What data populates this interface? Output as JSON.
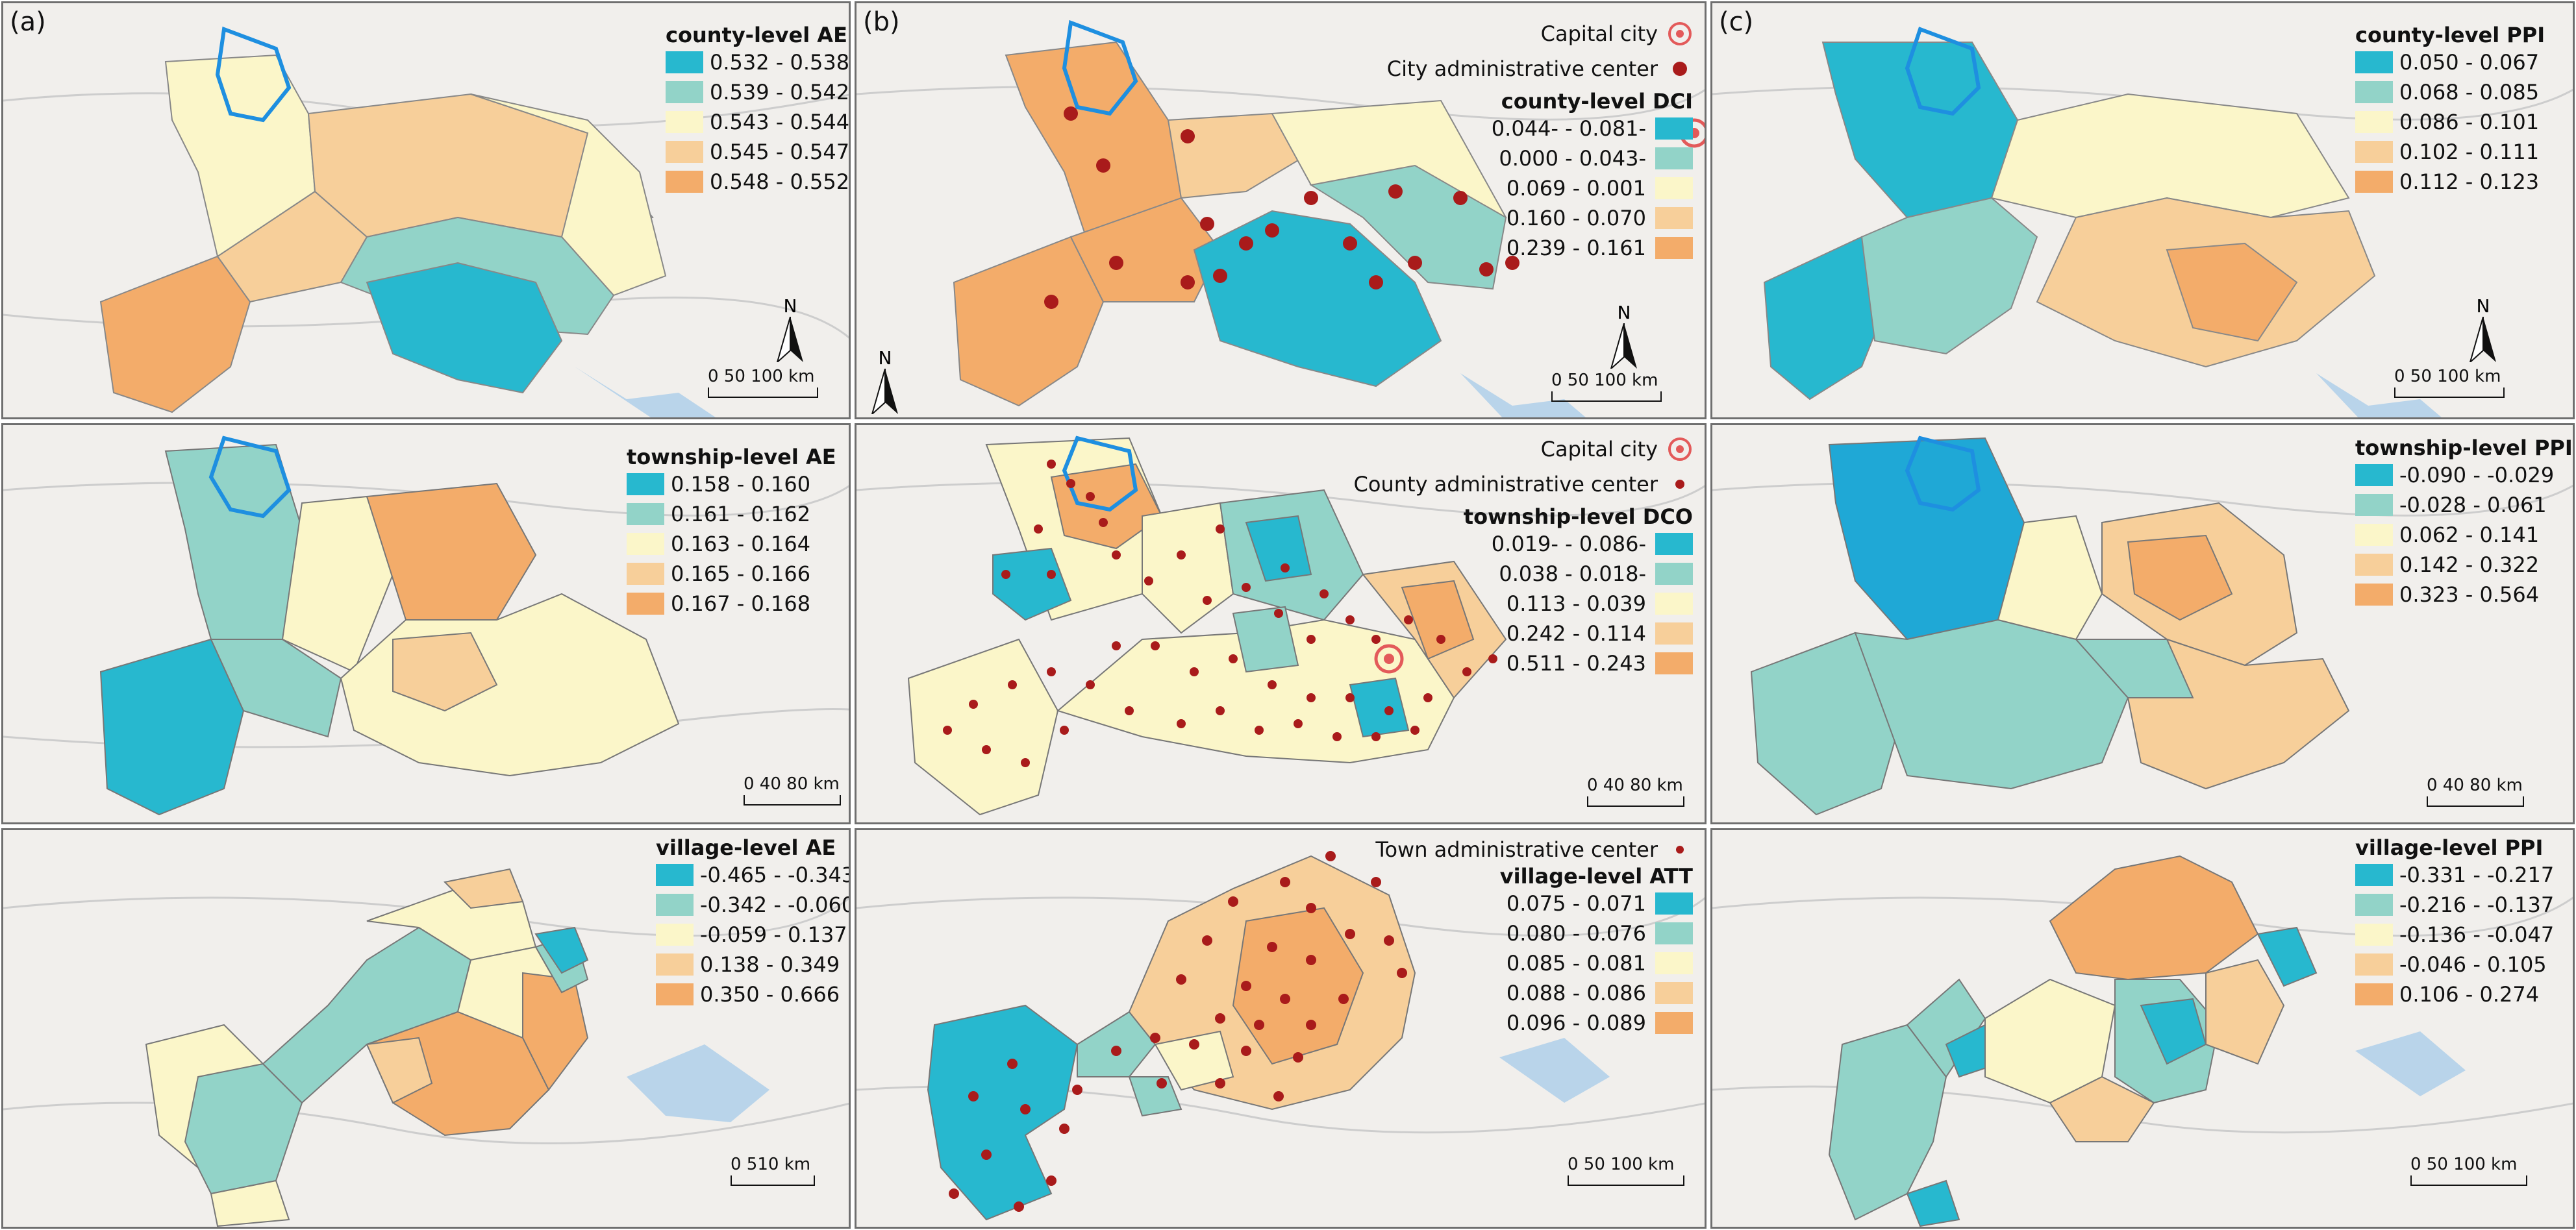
{
  "colors": {
    "c1": "#27b8cf",
    "c2": "#92d3c8",
    "c3": "#fbf6c9",
    "c4": "#f7cf9a",
    "c5": "#f3ac6a",
    "bg": "#f1efec",
    "water": "#b9d4ea",
    "road": "#cdcdcd",
    "dot": "#a91b1b",
    "highlight": "#1e8fe0"
  },
  "panel_labels": {
    "a": "(a)",
    "b": "(b)",
    "c": "(c)"
  },
  "north_label": "N",
  "symbols": {
    "capital_city": "Capital city",
    "city_center": "City administrative center",
    "county_center": "County administrative center",
    "town_center": "Town administrative center"
  },
  "legends": {
    "a1": {
      "title": "county-level AE",
      "items": [
        "0.532 - 0.538",
        "0.539 - 0.542",
        "0.543 - 0.544",
        "0.545 - 0.547",
        "0.548 - 0.552"
      ]
    },
    "b1": {
      "title": "county-level DCI",
      "items": [
        "0.044- - 0.081-",
        "0.000 - 0.043-",
        "0.069 - 0.001",
        "0.160 - 0.070",
        "0.239 - 0.161"
      ]
    },
    "c1": {
      "title": "county-level PPI",
      "items": [
        "0.050 - 0.067",
        "0.068 - 0.085",
        "0.086 - 0.101",
        "0.102 - 0.111",
        "0.112 - 0.123"
      ]
    },
    "a2": {
      "title": "township-level AE",
      "items": [
        "0.158 - 0.160",
        "0.161 - 0.162",
        "0.163 - 0.164",
        "0.165 - 0.166",
        "0.167 - 0.168"
      ]
    },
    "b2": {
      "title": "township-level DCO",
      "items": [
        "0.019- - 0.086-",
        "0.038 - 0.018-",
        "0.113 - 0.039",
        "0.242 - 0.114",
        "0.511 - 0.243"
      ]
    },
    "c2": {
      "title": "township-level PPI",
      "items": [
        "-0.090 - -0.029",
        "-0.028 - 0.061",
        "0.062 - 0.141",
        "0.142 - 0.322",
        "0.323 - 0.564"
      ]
    },
    "a3": {
      "title": "village-level AE",
      "items": [
        "-0.465 - -0.343",
        "-0.342 - -0.060",
        "-0.059 - 0.137",
        "0.138 - 0.349",
        "0.350 - 0.666"
      ]
    },
    "b3": {
      "title": "village-level ATT",
      "items": [
        "0.075 - 0.071",
        "0.080 - 0.076",
        "0.085 - 0.081",
        "0.088 - 0.086",
        "0.096 - 0.089"
      ]
    },
    "c3": {
      "title": "village-level PPI",
      "items": [
        "-0.331 - -0.217",
        "-0.216 - -0.137",
        "-0.136 - -0.047",
        "-0.046 - 0.105",
        "0.106 - 0.274"
      ]
    }
  },
  "scales": {
    "a1": "0   50 100 km",
    "b1": "0   50 100 km",
    "c1": "0   50 100 km",
    "a2": "0  40 80 km",
    "b2": "0  40 80 km",
    "c2": "0  40 80 km",
    "a3": "0 510 km",
    "b3": "0   50 100 km",
    "c3": "0   50 100 km"
  }
}
